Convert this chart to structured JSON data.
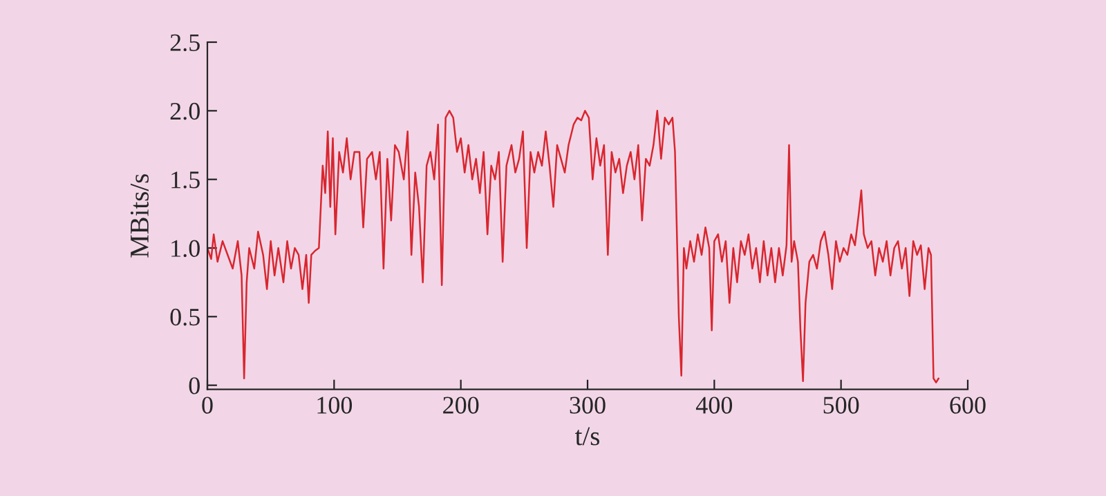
{
  "chart_data": {
    "type": "line",
    "xlabel": "t/s",
    "ylabel": "MBits/s",
    "xlim": [
      0,
      600
    ],
    "ylim": [
      -0.03,
      2.5
    ],
    "xticks": [
      0,
      100,
      200,
      300,
      400,
      500,
      600
    ],
    "yticks": [
      0,
      {
        "value": 0.5,
        "label": "0.5"
      },
      {
        "value": 1,
        "label": "1.0"
      },
      {
        "value": 1.5,
        "label": "1.5"
      },
      {
        "value": 2,
        "label": "2.0"
      },
      {
        "value": 2.5,
        "label": "2.5"
      }
    ],
    "grid": false,
    "marker": "none",
    "line_style": "solid",
    "series": [
      {
        "color": "#d9262e",
        "x": [
          0,
          3,
          5,
          8,
          12,
          16,
          20,
          24,
          27,
          29,
          31,
          33,
          37,
          40,
          44,
          47,
          50,
          53,
          56,
          60,
          63,
          66,
          69,
          72,
          75,
          78,
          80,
          82,
          85,
          88,
          91,
          93,
          95,
          97,
          99,
          101,
          104,
          107,
          110,
          113,
          116,
          120,
          123,
          126,
          130,
          133,
          136,
          139,
          142,
          145,
          148,
          151,
          155,
          158,
          161,
          164,
          167,
          170,
          173,
          176,
          179,
          182,
          185,
          188,
          191,
          194,
          197,
          200,
          203,
          206,
          209,
          212,
          215,
          218,
          221,
          224,
          227,
          230,
          233,
          236,
          240,
          243,
          246,
          249,
          252,
          255,
          258,
          261,
          264,
          267,
          270,
          273,
          276,
          279,
          282,
          285,
          289,
          292,
          295,
          298,
          301,
          304,
          307,
          310,
          313,
          316,
          319,
          322,
          325,
          328,
          331,
          334,
          337,
          340,
          343,
          346,
          349,
          352,
          355,
          358,
          361,
          364,
          367,
          369,
          372,
          374,
          376,
          378,
          381,
          384,
          387,
          390,
          393,
          396,
          398,
          400,
          403,
          406,
          409,
          412,
          415,
          418,
          421,
          424,
          427,
          430,
          433,
          436,
          439,
          442,
          445,
          448,
          451,
          454,
          457,
          459,
          461,
          463,
          466,
          468,
          470,
          472,
          475,
          478,
          481,
          484,
          487,
          490,
          493,
          496,
          499,
          502,
          505,
          508,
          511,
          514,
          516,
          518,
          521,
          524,
          527,
          530,
          533,
          536,
          539,
          542,
          545,
          548,
          551,
          554,
          557,
          560,
          563,
          566,
          569,
          571,
          573,
          575,
          577
        ],
        "values": [
          1.0,
          0.92,
          1.1,
          0.9,
          1.05,
          0.95,
          0.85,
          1.05,
          0.8,
          0.05,
          0.75,
          1.0,
          0.85,
          1.12,
          0.95,
          0.7,
          1.05,
          0.8,
          1.0,
          0.75,
          1.05,
          0.85,
          1.0,
          0.95,
          0.7,
          0.95,
          0.6,
          0.95,
          0.98,
          1.0,
          1.6,
          1.4,
          1.85,
          1.3,
          1.8,
          1.1,
          1.7,
          1.55,
          1.8,
          1.5,
          1.7,
          1.7,
          1.15,
          1.65,
          1.7,
          1.5,
          1.7,
          0.85,
          1.65,
          1.2,
          1.75,
          1.7,
          1.5,
          1.85,
          0.95,
          1.55,
          1.3,
          0.75,
          1.6,
          1.7,
          1.5,
          1.9,
          0.73,
          1.95,
          2.0,
          1.95,
          1.7,
          1.8,
          1.55,
          1.75,
          1.5,
          1.65,
          1.4,
          1.7,
          1.1,
          1.6,
          1.5,
          1.7,
          0.9,
          1.6,
          1.75,
          1.55,
          1.65,
          1.85,
          1.0,
          1.7,
          1.55,
          1.7,
          1.6,
          1.85,
          1.6,
          1.3,
          1.75,
          1.65,
          1.55,
          1.75,
          1.9,
          1.95,
          1.93,
          2.0,
          1.95,
          1.5,
          1.8,
          1.6,
          1.75,
          0.95,
          1.7,
          1.55,
          1.65,
          1.4,
          1.6,
          1.7,
          1.5,
          1.75,
          1.2,
          1.65,
          1.6,
          1.75,
          2.0,
          1.65,
          1.95,
          1.9,
          1.95,
          1.7,
          0.5,
          0.07,
          1.0,
          0.85,
          1.05,
          0.9,
          1.1,
          0.95,
          1.15,
          1.0,
          0.4,
          1.05,
          1.1,
          0.9,
          1.05,
          0.6,
          1.0,
          0.75,
          1.05,
          0.95,
          1.1,
          0.85,
          1.0,
          0.75,
          1.05,
          0.8,
          1.0,
          0.75,
          1.0,
          0.8,
          1.02,
          1.75,
          0.9,
          1.05,
          0.9,
          0.4,
          0.03,
          0.6,
          0.9,
          0.95,
          0.85,
          1.05,
          1.12,
          0.95,
          0.7,
          1.05,
          0.9,
          1.0,
          0.95,
          1.1,
          1.02,
          1.25,
          1.42,
          1.1,
          1.0,
          1.05,
          0.8,
          1.0,
          0.9,
          1.05,
          0.8,
          1.0,
          1.05,
          0.85,
          1.0,
          0.65,
          1.05,
          0.95,
          1.02,
          0.7,
          1.0,
          0.95,
          0.05,
          0.02,
          0.05
        ]
      }
    ]
  }
}
